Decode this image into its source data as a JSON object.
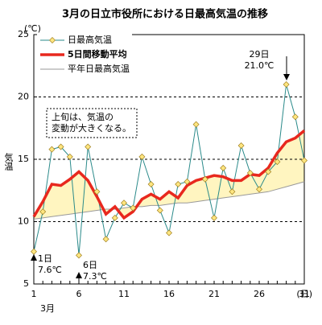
{
  "chart_data": {
    "type": "line",
    "title": "3月の日立市役所における日最高気温の推移",
    "y_unit": "(℃)",
    "ylabel": "気温",
    "x_unit": "(日)",
    "x_month": "3月",
    "x": [
      1,
      2,
      3,
      4,
      5,
      6,
      7,
      8,
      9,
      10,
      11,
      12,
      13,
      14,
      15,
      16,
      17,
      18,
      19,
      20,
      21,
      22,
      23,
      24,
      25,
      26,
      27,
      28,
      29,
      30,
      31
    ],
    "xlim": [
      1,
      31
    ],
    "xticks": [
      1,
      6,
      11,
      16,
      21,
      26,
      31
    ],
    "ylim": [
      5,
      25
    ],
    "yticks": [
      5,
      10,
      15,
      20,
      25
    ],
    "grid": true,
    "legend": "top-left",
    "series": [
      {
        "name": "日最高気温",
        "color": "#2a8a8a",
        "marker_color": "#ffe680",
        "values": [
          7.6,
          10.8,
          15.8,
          16.0,
          15.2,
          7.3,
          16.0,
          12.4,
          8.6,
          10.3,
          11.5,
          11.1,
          15.2,
          13.0,
          10.9,
          9.1,
          13.0,
          13.2,
          17.8,
          13.4,
          10.3,
          14.3,
          12.4,
          16.1,
          13.9,
          12.6,
          14.0,
          14.8,
          21.0,
          18.4,
          14.9
        ]
      },
      {
        "name": "5日間移動平均",
        "color": "#e8281e",
        "values": [
          10.4,
          11.6,
          13.0,
          12.9,
          13.4,
          14.0,
          13.3,
          12.0,
          10.6,
          11.2,
          10.3,
          10.8,
          11.8,
          12.2,
          11.8,
          12.4,
          11.9,
          12.9,
          13.3,
          13.5,
          13.7,
          13.6,
          13.3,
          13.3,
          13.8,
          13.7,
          14.3,
          15.5,
          16.4,
          16.7,
          17.3
        ]
      },
      {
        "name": "平年日最高気温",
        "color": "#999999",
        "fill": "#fff5c0",
        "values": [
          10.2,
          10.3,
          10.4,
          10.5,
          10.6,
          10.7,
          10.8,
          10.9,
          11.0,
          11.0,
          11.1,
          11.2,
          11.2,
          11.3,
          11.3,
          11.4,
          11.5,
          11.5,
          11.6,
          11.7,
          11.8,
          11.9,
          12.0,
          12.1,
          12.2,
          12.3,
          12.4,
          12.6,
          12.8,
          13.0,
          13.2
        ]
      }
    ],
    "annotations": [
      {
        "lines": [
          "29日",
          "21.0℃"
        ]
      },
      {
        "lines": [
          "1日",
          "7.6℃"
        ]
      },
      {
        "lines": [
          "6日",
          "7.3℃"
        ]
      },
      {
        "lines": [
          "上旬は、気温の",
          "変動が大きくなる。"
        ]
      }
    ]
  }
}
